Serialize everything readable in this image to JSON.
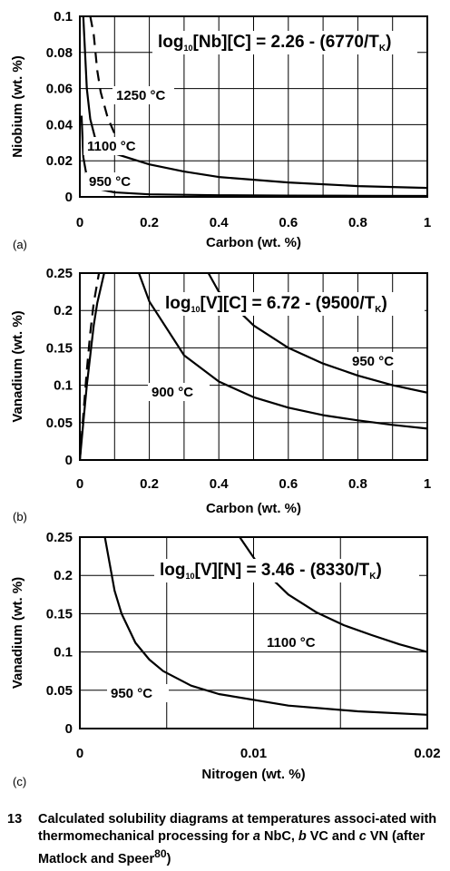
{
  "charts": [
    {
      "id": "a",
      "panel_label": "(a)",
      "equation": {
        "base": "log",
        "sub1": "10",
        "body": "[Nb][C] = 2.26 - (6770/T",
        "sub2": "K",
        "close": ")"
      },
      "xlabel": "Carbon (wt. %)",
      "ylabel": "Niobium (wt. %)",
      "xticks": [
        "0",
        "0.2",
        "0.4",
        "0.6",
        "0.8",
        "1"
      ],
      "yticks": [
        "0",
        "0.02",
        "0.04",
        "0.06",
        "0.08",
        "0.1"
      ],
      "curve_labels": [
        "1250 °C",
        "1100 °C",
        "950 °C"
      ]
    },
    {
      "id": "b",
      "panel_label": "(b)",
      "equation": {
        "base": "log",
        "sub1": "10",
        "body": "[V][C] = 6.72 - (9500/T",
        "sub2": "K",
        "close": ")"
      },
      "xlabel": "Carbon (wt. %)",
      "ylabel": "Vanadium (wt. %)",
      "xticks": [
        "0",
        "0.2",
        "0.4",
        "0.6",
        "0.8",
        "1"
      ],
      "yticks": [
        "0",
        "0.05",
        "0.1",
        "0.15",
        "0.2",
        "0.25"
      ],
      "curve_labels": [
        "950 °C",
        "900 °C"
      ]
    },
    {
      "id": "c",
      "panel_label": "(c)",
      "equation": {
        "base": "log",
        "sub1": "10",
        "body": "[V][N] = 3.46 - (8330/T",
        "sub2": "K",
        "close": ")"
      },
      "xlabel": "Nitrogen (wt. %)",
      "ylabel": "Vanadium (wt. %)",
      "xticks": [
        "0",
        "0.01",
        "0.02"
      ],
      "yticks": [
        "0",
        "0.05",
        "0.1",
        "0.15",
        "0.2",
        "0.25"
      ],
      "curve_labels": [
        "1100 °C",
        "950 °C"
      ]
    }
  ],
  "caption": {
    "number": "13",
    "text_parts": [
      "Calculated solubility diagrams at temperatures associ-ated with thermomechanical processing for ",
      "a",
      " NbC, ",
      "b",
      " VC and ",
      "c",
      " VN (after Matlock and Speer",
      "80",
      ")"
    ]
  },
  "chart_data": [
    {
      "type": "line",
      "xlabel": "Carbon (wt. %)",
      "ylabel": "Niobium (wt. %)",
      "xlim": [
        0,
        1
      ],
      "ylim": [
        0,
        0.1
      ],
      "grid": true,
      "series": [
        {
          "name": "1250 °C",
          "style": "dashed",
          "x": [
            0.03,
            0.04,
            0.05,
            0.06,
            0.08,
            0.1,
            0.11
          ],
          "y": [
            0.1,
            0.09,
            0.07,
            0.058,
            0.044,
            0.035,
            0.032
          ]
        },
        {
          "name": "1100 °C",
          "style": "solid",
          "x": [
            0.01,
            0.02,
            0.03,
            0.05,
            0.1,
            0.2,
            0.3,
            0.4,
            0.6,
            0.8,
            1.0
          ],
          "y": [
            0.1,
            0.06,
            0.043,
            0.028,
            0.024,
            0.018,
            0.014,
            0.011,
            0.008,
            0.006,
            0.005
          ]
        },
        {
          "name": "950 °C",
          "style": "solid",
          "x": [
            0.005,
            0.01,
            0.02,
            0.05,
            0.1,
            0.2,
            0.4,
            0.6,
            0.8,
            1.0
          ],
          "y": [
            0.045,
            0.022,
            0.011,
            0.0045,
            0.0025,
            0.0014,
            0.0009,
            0.0007,
            0.0006,
            0.0005
          ]
        }
      ]
    },
    {
      "type": "line",
      "xlabel": "Carbon (wt. %)",
      "ylabel": "Vanadium (wt. %)",
      "xlim": [
        0,
        1
      ],
      "ylim": [
        0,
        0.25
      ],
      "grid": true,
      "series": [
        {
          "name": "",
          "style": "dashed",
          "x": [
            0.0,
            0.01,
            0.02,
            0.03,
            0.04,
            0.055
          ],
          "y": [
            0.0,
            0.06,
            0.12,
            0.17,
            0.21,
            0.25
          ]
        },
        {
          "name": "",
          "style": "solid",
          "x": [
            0.0,
            0.01,
            0.02,
            0.03,
            0.04,
            0.05,
            0.06,
            0.07
          ],
          "y": [
            0.0,
            0.05,
            0.1,
            0.14,
            0.18,
            0.21,
            0.23,
            0.25
          ]
        },
        {
          "name": "900 °C",
          "style": "solid",
          "x": [
            0.17,
            0.2,
            0.3,
            0.4,
            0.5,
            0.6,
            0.7,
            0.8,
            0.9,
            1.0
          ],
          "y": [
            0.25,
            0.212,
            0.14,
            0.105,
            0.084,
            0.07,
            0.06,
            0.053,
            0.047,
            0.042
          ]
        },
        {
          "name": "950 °C",
          "style": "solid",
          "x": [
            0.37,
            0.4,
            0.5,
            0.6,
            0.7,
            0.8,
            0.9,
            1.0
          ],
          "y": [
            0.25,
            0.225,
            0.18,
            0.15,
            0.129,
            0.113,
            0.1,
            0.09
          ]
        }
      ]
    },
    {
      "type": "line",
      "xlabel": "Nitrogen (wt. %)",
      "ylabel": "Vanadium (wt. %)",
      "xlim": [
        0,
        0.025
      ],
      "ylim": [
        0,
        0.25
      ],
      "grid": true,
      "series": [
        {
          "name": "950 °C",
          "style": "solid",
          "x": [
            0.0018,
            0.0025,
            0.003,
            0.004,
            0.005,
            0.006,
            0.008,
            0.01,
            0.015,
            0.02,
            0.025
          ],
          "y": [
            0.25,
            0.18,
            0.15,
            0.112,
            0.09,
            0.075,
            0.056,
            0.045,
            0.03,
            0.0225,
            0.018
          ]
        },
        {
          "name": "1100 °C",
          "style": "solid",
          "x": [
            0.0115,
            0.013,
            0.015,
            0.017,
            0.019,
            0.021,
            0.023,
            0.025
          ],
          "y": [
            0.25,
            0.21,
            0.175,
            0.152,
            0.135,
            0.122,
            0.11,
            0.1
          ]
        }
      ]
    }
  ]
}
